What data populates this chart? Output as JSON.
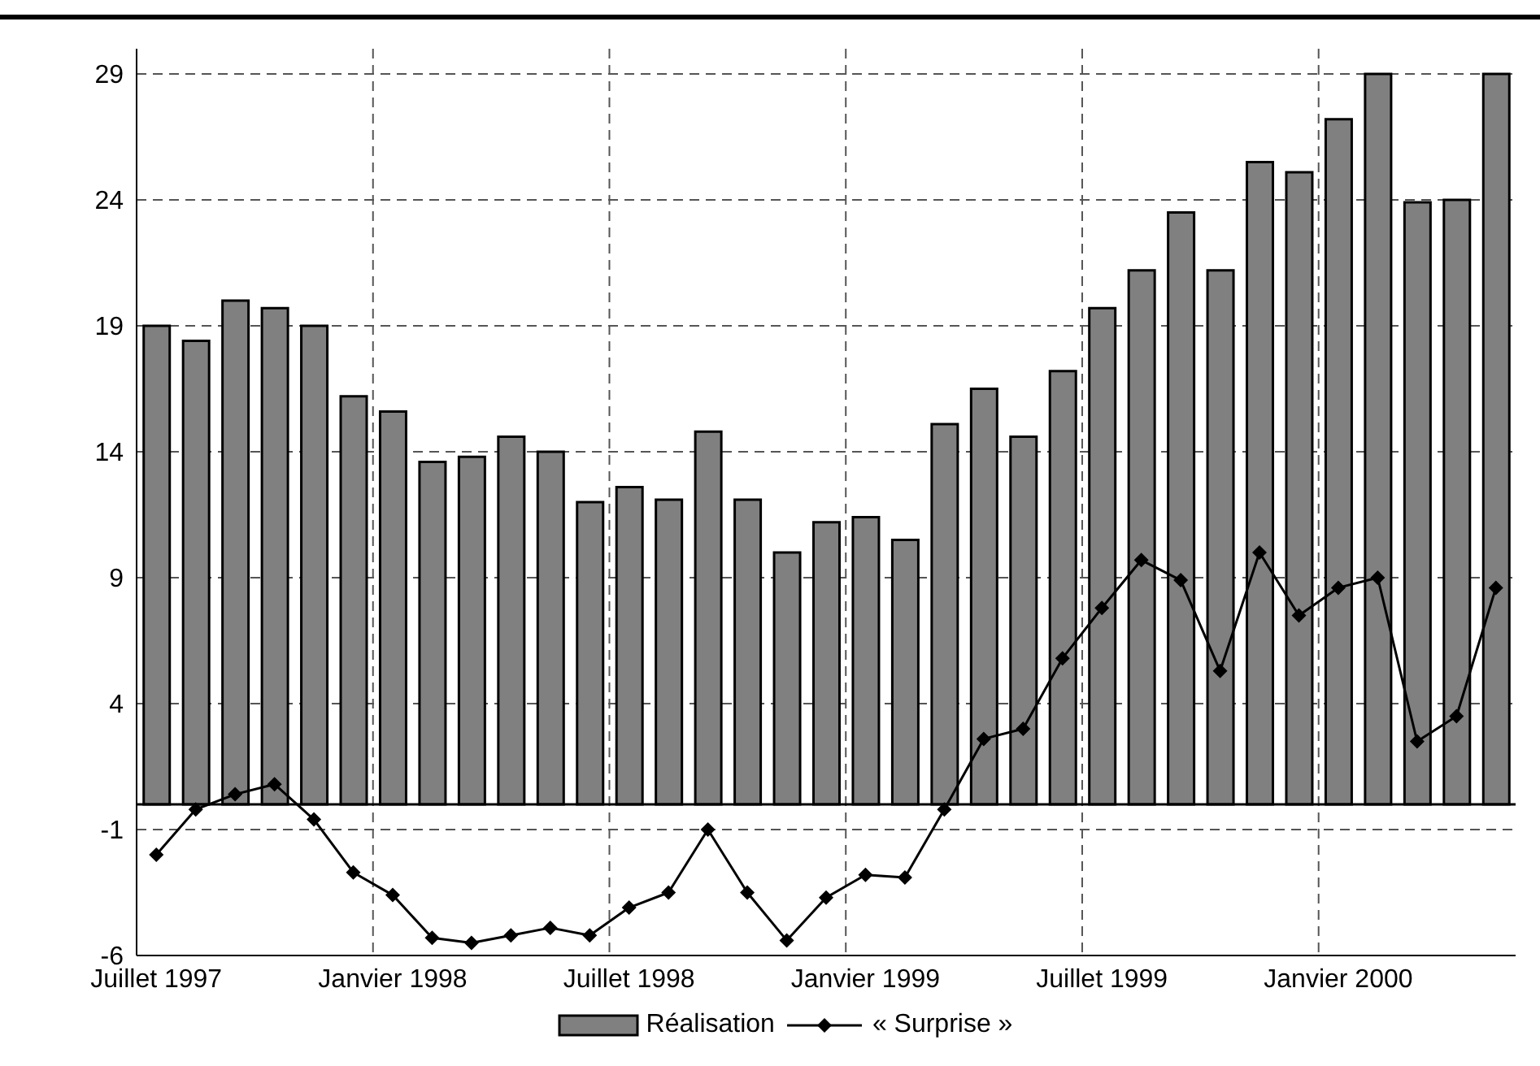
{
  "chart_data": {
    "type": "bar",
    "categories": [
      "Juillet 1997",
      null,
      null,
      null,
      null,
      null,
      "Janvier 1998",
      null,
      null,
      null,
      null,
      null,
      "Juillet 1998",
      null,
      null,
      null,
      null,
      null,
      "Janvier 1999",
      null,
      null,
      null,
      null,
      null,
      "Juillet 1999",
      null,
      null,
      null,
      null,
      null,
      "Janvier 2000",
      null,
      null,
      null,
      null
    ],
    "series": [
      {
        "name": "Réalisation",
        "color": "#808080",
        "values": [
          19,
          18.4,
          20,
          19.7,
          19,
          16.2,
          15.6,
          13.6,
          13.8,
          14.6,
          14,
          12,
          12.6,
          12.1,
          14.8,
          12.1,
          10,
          11.2,
          11.4,
          10.5,
          15.1,
          16.5,
          14.6,
          17.2,
          19.7,
          21.2,
          23.5,
          21.2,
          25.5,
          25.1,
          27.2,
          29,
          23.9,
          24,
          29
        ]
      },
      {
        "name": "« Surprise »",
        "type": "line",
        "color": "#000000",
        "values": [
          -2,
          -0.2,
          0.4,
          0.8,
          -0.6,
          -2.7,
          -3.6,
          -5.3,
          -5.5,
          -5.2,
          -4.9,
          -5.2,
          -4.1,
          -3.5,
          -1,
          -3.5,
          -5.4,
          -3.7,
          -2.8,
          -2.9,
          -0.2,
          2.6,
          3,
          5.8,
          7.8,
          9.7,
          8.9,
          5.3,
          10,
          7.5,
          8.6,
          9,
          2.5,
          3.5,
          8.6
        ]
      }
    ],
    "ylim": [
      -6,
      30
    ],
    "yticks": [
      -6,
      -1,
      4,
      9,
      14,
      19,
      24,
      29
    ],
    "grid": true,
    "legend": "bottom",
    "marker": "diamond"
  }
}
